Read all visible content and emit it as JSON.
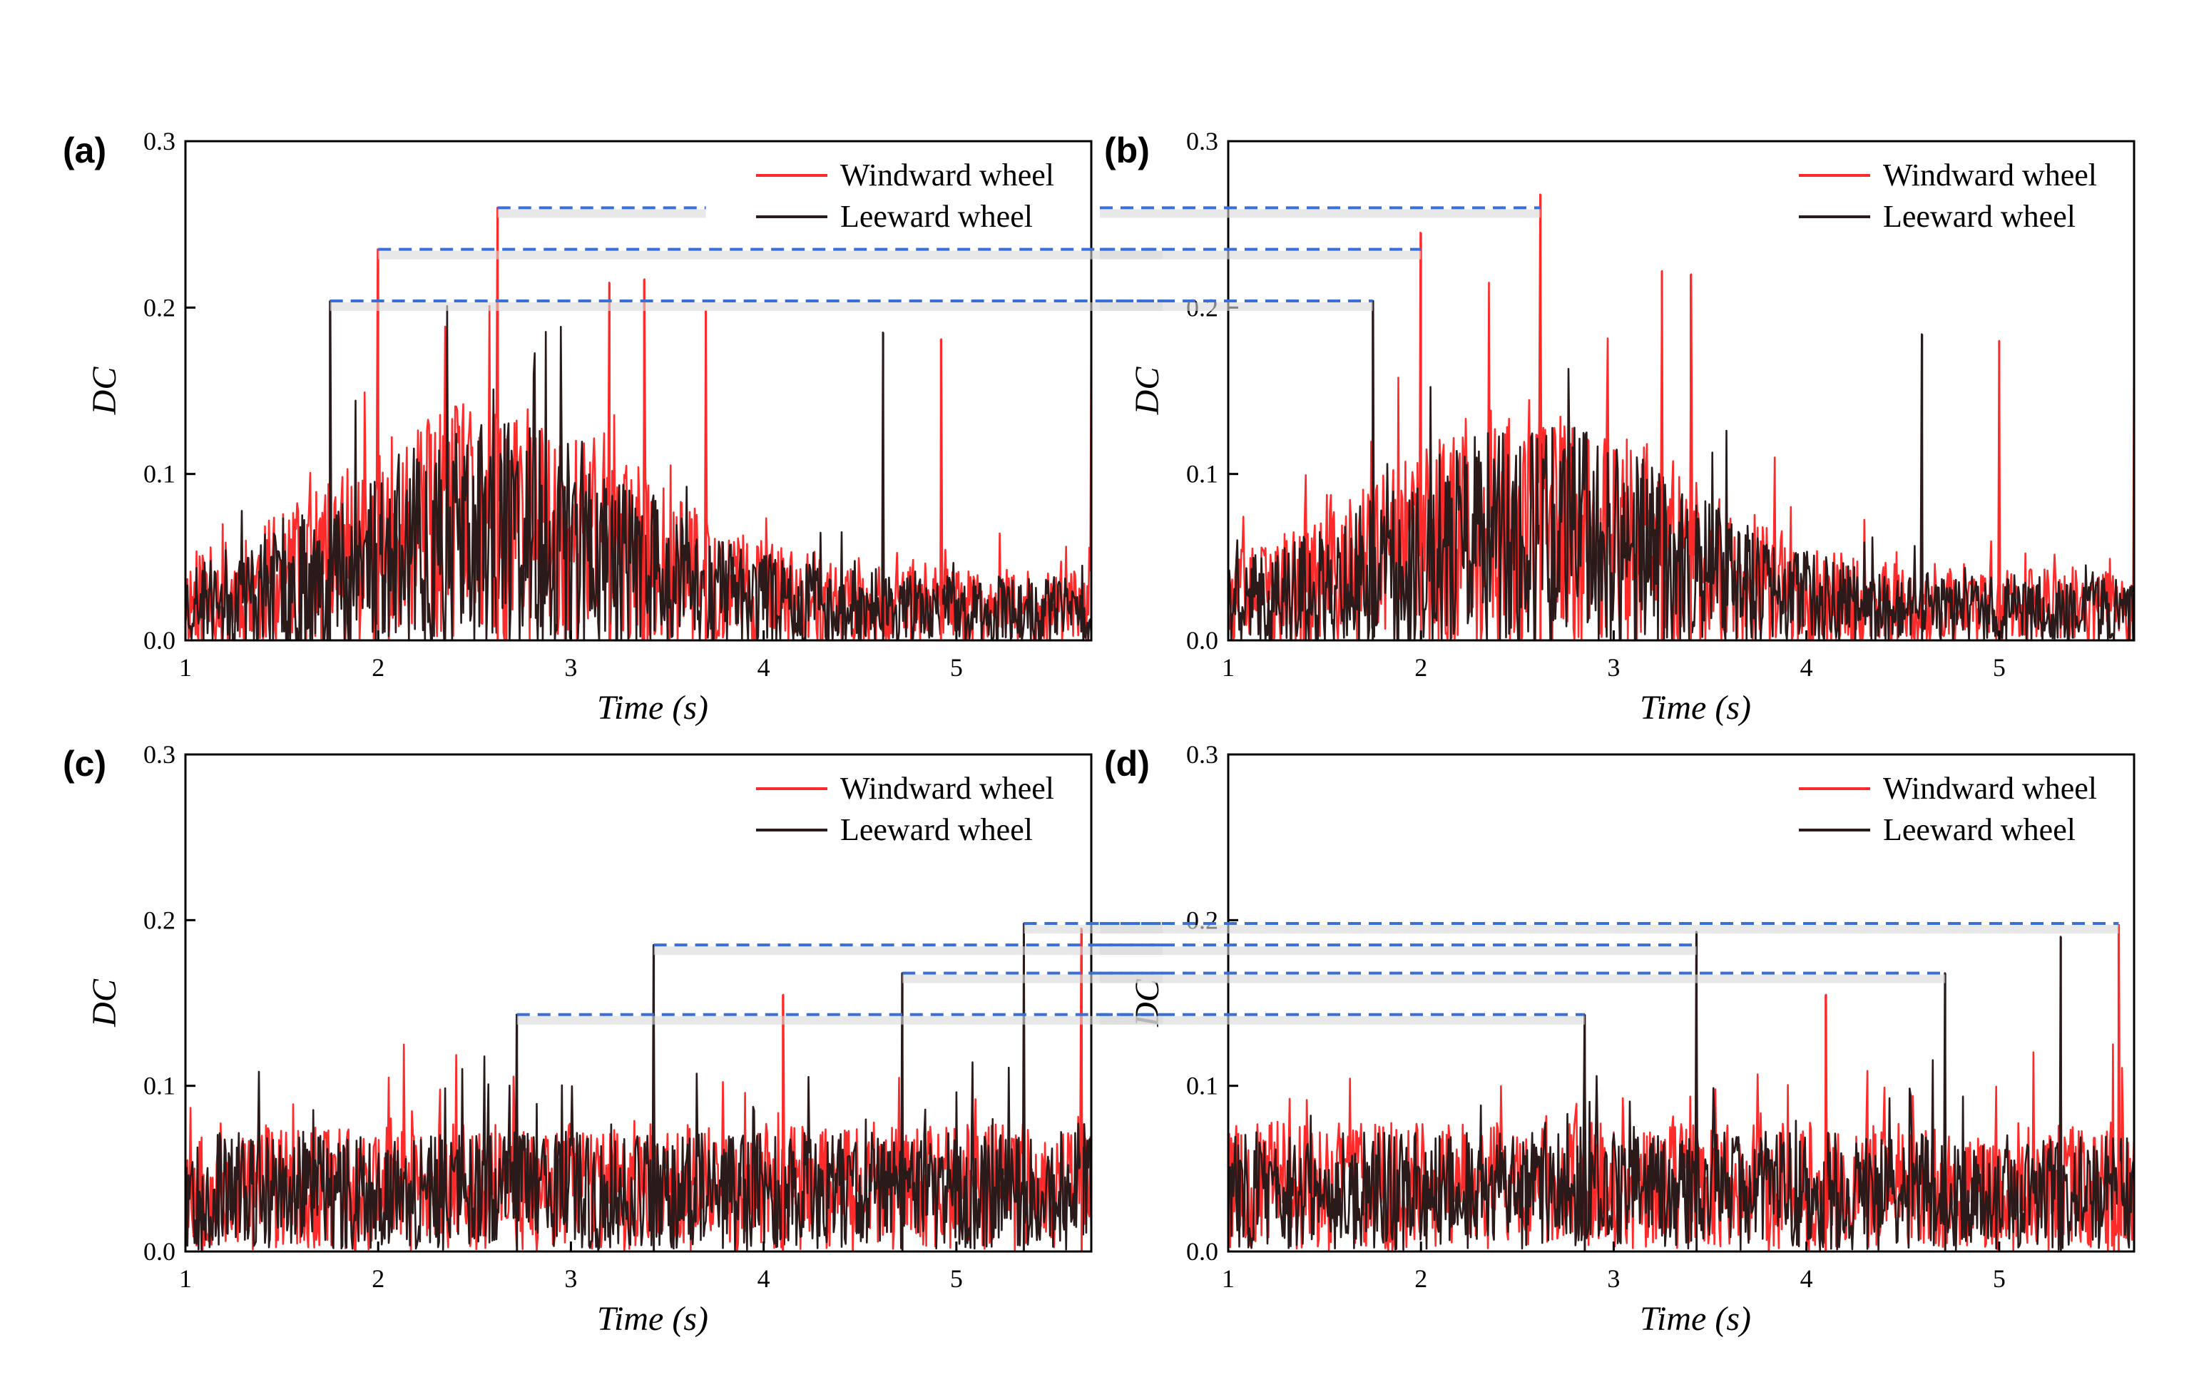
{
  "colors": {
    "windward": "#ff2a2a",
    "leeward": "#2b1a1a",
    "reference": "#3a6fd8"
  },
  "chart_data": [
    {
      "panel": "(a)",
      "type": "line",
      "xlabel": "Time (s)",
      "ylabel": "DC",
      "xlim": [
        1,
        5.7
      ],
      "ylim": [
        0,
        0.3
      ],
      "xticks": [
        "1",
        "2",
        "3",
        "4",
        "5"
      ],
      "yticks": [
        "0.0",
        "0.1",
        "0.2",
        "0.3"
      ],
      "legend": [
        "Windward wheel",
        "Leeward wheel"
      ],
      "legend_position": "top-right",
      "series": [
        {
          "name": "Windward wheel",
          "color": "#ff2a2a",
          "seed": 11,
          "envelope": "hump",
          "base": 0.05,
          "amp": 0.1
        },
        {
          "name": "Leeward wheel",
          "color": "#2b1a1a",
          "seed": 23,
          "envelope": "hump",
          "base": 0.045,
          "amp": 0.09
        }
      ],
      "peaks": [
        {
          "x": 1.75,
          "y": 0.204,
          "series": "Leeward wheel"
        },
        {
          "x": 2.0,
          "y": 0.235,
          "series": "Windward wheel"
        },
        {
          "x": 2.62,
          "y": 0.26,
          "series": "Windward wheel"
        },
        {
          "x": 3.2,
          "y": 0.215,
          "series": "Windward wheel"
        },
        {
          "x": 3.38,
          "y": 0.217,
          "series": "Windward wheel"
        },
        {
          "x": 3.7,
          "y": 0.198,
          "series": "Windward wheel"
        },
        {
          "x": 4.62,
          "y": 0.185,
          "series": "Leeward wheel"
        },
        {
          "x": 4.92,
          "y": 0.181,
          "series": "Windward wheel"
        },
        {
          "x": 5.7,
          "y": 0.19,
          "series": "Windward wheel"
        }
      ],
      "reference_lines": [
        {
          "y": 0.26,
          "x_from": 2.62,
          "x_to": 3.7
        },
        {
          "y": 0.235,
          "x_from": 2.0,
          "x_to": 5.7
        },
        {
          "y": 0.204,
          "x_from": 1.75,
          "x_to": 5.7
        }
      ]
    },
    {
      "panel": "(b)",
      "type": "line",
      "xlabel": "Time (s)",
      "ylabel": "DC",
      "xlim": [
        1,
        5.7
      ],
      "ylim": [
        0,
        0.3
      ],
      "xticks": [
        "1",
        "2",
        "3",
        "4",
        "5"
      ],
      "yticks": [
        "0.0",
        "0.1",
        "0.2",
        "0.3"
      ],
      "legend": [
        "Windward wheel",
        "Leeward wheel"
      ],
      "legend_position": "top-right",
      "series": [
        {
          "name": "Windward wheel",
          "color": "#ff2a2a",
          "seed": 37,
          "envelope": "hump",
          "base": 0.05,
          "amp": 0.1
        },
        {
          "name": "Leeward wheel",
          "color": "#2b1a1a",
          "seed": 41,
          "envelope": "hump",
          "base": 0.045,
          "amp": 0.09
        }
      ],
      "peaks": [
        {
          "x": 1.75,
          "y": 0.204,
          "series": "Leeward wheel"
        },
        {
          "x": 2.0,
          "y": 0.245,
          "series": "Windward wheel"
        },
        {
          "x": 2.62,
          "y": 0.268,
          "series": "Windward wheel"
        },
        {
          "x": 3.25,
          "y": 0.222,
          "series": "Windward wheel"
        },
        {
          "x": 3.4,
          "y": 0.22,
          "series": "Windward wheel"
        },
        {
          "x": 4.6,
          "y": 0.184,
          "series": "Leeward wheel"
        },
        {
          "x": 5.0,
          "y": 0.18,
          "series": "Windward wheel"
        },
        {
          "x": 5.7,
          "y": 0.183,
          "series": "Windward wheel"
        }
      ],
      "reference_lines": [
        {
          "y": 0.26,
          "x_from": 1.0,
          "x_to": 2.62
        },
        {
          "y": 0.235,
          "x_from": 1.0,
          "x_to": 2.0
        },
        {
          "y": 0.204,
          "x_from": 1.0,
          "x_to": 1.75
        }
      ]
    },
    {
      "panel": "(c)",
      "type": "line",
      "xlabel": "Time (s)",
      "ylabel": "DC",
      "xlim": [
        1,
        5.7
      ],
      "ylim": [
        0,
        0.3
      ],
      "xticks": [
        "1",
        "2",
        "3",
        "4",
        "5"
      ],
      "yticks": [
        "0.0",
        "0.1",
        "0.2",
        "0.3"
      ],
      "legend": [
        "Windward wheel",
        "Leeward wheel"
      ],
      "legend_position": "top-right",
      "series": [
        {
          "name": "Windward wheel",
          "color": "#ff2a2a",
          "seed": 53,
          "envelope": "flat",
          "base": 0.035,
          "amp": 0.06
        },
        {
          "name": "Leeward wheel",
          "color": "#2b1a1a",
          "seed": 67,
          "envelope": "flat",
          "base": 0.033,
          "amp": 0.055
        }
      ],
      "peaks": [
        {
          "x": 2.72,
          "y": 0.143,
          "series": "Leeward wheel"
        },
        {
          "x": 3.43,
          "y": 0.185,
          "series": "Leeward wheel"
        },
        {
          "x": 4.1,
          "y": 0.155,
          "series": "Windward wheel"
        },
        {
          "x": 4.72,
          "y": 0.168,
          "series": "Leeward wheel"
        },
        {
          "x": 5.35,
          "y": 0.198,
          "series": "Leeward wheel"
        },
        {
          "x": 5.65,
          "y": 0.195,
          "series": "Windward wheel"
        }
      ],
      "reference_lines": [
        {
          "y": 0.143,
          "x_from": 2.72,
          "x_to": 5.7
        },
        {
          "y": 0.185,
          "x_from": 3.43,
          "x_to": 5.7
        },
        {
          "y": 0.168,
          "x_from": 4.72,
          "x_to": 5.7
        },
        {
          "y": 0.198,
          "x_from": 5.35,
          "x_to": 5.7
        }
      ]
    },
    {
      "panel": "(d)",
      "type": "line",
      "xlabel": "Time (s)",
      "ylabel": "DC",
      "xlim": [
        1,
        5.7
      ],
      "ylim": [
        0,
        0.3
      ],
      "xticks": [
        "1",
        "2",
        "3",
        "4",
        "5"
      ],
      "yticks": [
        "0.0",
        "0.1",
        "0.2",
        "0.3"
      ],
      "legend": [
        "Windward wheel",
        "Leeward wheel"
      ],
      "legend_position": "top-right",
      "series": [
        {
          "name": "Windward wheel",
          "color": "#ff2a2a",
          "seed": 79,
          "envelope": "flat",
          "base": 0.035,
          "amp": 0.06
        },
        {
          "name": "Leeward wheel",
          "color": "#2b1a1a",
          "seed": 83,
          "envelope": "flat",
          "base": 0.033,
          "amp": 0.055
        }
      ],
      "peaks": [
        {
          "x": 2.85,
          "y": 0.143,
          "series": "Leeward wheel"
        },
        {
          "x": 3.43,
          "y": 0.193,
          "series": "Leeward wheel"
        },
        {
          "x": 4.1,
          "y": 0.155,
          "series": "Windward wheel"
        },
        {
          "x": 4.72,
          "y": 0.168,
          "series": "Leeward wheel"
        },
        {
          "x": 5.32,
          "y": 0.19,
          "series": "Leeward wheel"
        },
        {
          "x": 5.62,
          "y": 0.197,
          "series": "Windward wheel"
        }
      ],
      "reference_lines": [
        {
          "y": 0.143,
          "x_from": 1.0,
          "x_to": 2.85
        },
        {
          "y": 0.185,
          "x_from": 1.0,
          "x_to": 3.43
        },
        {
          "y": 0.168,
          "x_from": 1.0,
          "x_to": 4.72
        },
        {
          "y": 0.198,
          "x_from": 1.0,
          "x_to": 5.62
        }
      ]
    }
  ]
}
